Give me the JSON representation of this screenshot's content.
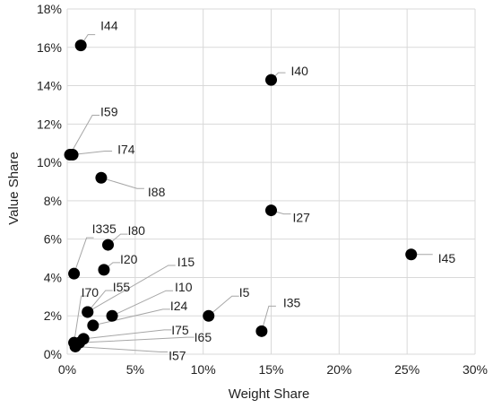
{
  "chart_data": {
    "type": "scatter",
    "xlabel": "Weight Share",
    "ylabel": "Value Share",
    "xlim": [
      0,
      30
    ],
    "ylim": [
      0,
      18
    ],
    "x_ticks": [
      0,
      5,
      10,
      15,
      20,
      25,
      30
    ],
    "y_ticks": [
      0,
      2,
      4,
      6,
      8,
      10,
      12,
      14,
      16,
      18
    ],
    "x_tick_labels": [
      "0%",
      "5%",
      "10%",
      "15%",
      "20%",
      "25%",
      "30%"
    ],
    "y_tick_labels": [
      "0%",
      "2%",
      "4%",
      "6%",
      "8%",
      "10%",
      "12%",
      "14%",
      "16%",
      "18%"
    ],
    "grid": true,
    "marker_color": "#000000",
    "points": [
      {
        "label": "I44",
        "x": 1.0,
        "y": 16.1
      },
      {
        "label": "I40",
        "x": 15.0,
        "y": 14.3
      },
      {
        "label": "I59",
        "x": 0.2,
        "y": 10.4
      },
      {
        "label": "I74",
        "x": 0.4,
        "y": 10.4
      },
      {
        "label": "I88",
        "x": 2.5,
        "y": 9.2
      },
      {
        "label": "I27",
        "x": 15.0,
        "y": 7.5
      },
      {
        "label": "I335",
        "x": 0.5,
        "y": 4.2
      },
      {
        "label": "I80",
        "x": 3.0,
        "y": 5.7
      },
      {
        "label": "I20",
        "x": 2.7,
        "y": 4.4
      },
      {
        "label": "I45",
        "x": 25.3,
        "y": 5.2
      },
      {
        "label": "I15",
        "x": 1.5,
        "y": 2.2
      },
      {
        "label": "I55",
        "x": 1.5,
        "y": 2.2
      },
      {
        "label": "I70",
        "x": 0.5,
        "y": 0.6
      },
      {
        "label": "I10",
        "x": 3.3,
        "y": 2.0
      },
      {
        "label": "I24",
        "x": 1.9,
        "y": 1.5
      },
      {
        "label": "I5",
        "x": 10.4,
        "y": 2.0
      },
      {
        "label": "I35",
        "x": 14.3,
        "y": 1.2
      },
      {
        "label": "I75",
        "x": 1.2,
        "y": 0.8
      },
      {
        "label": "I65",
        "x": 0.9,
        "y": 0.6
      },
      {
        "label": "I57",
        "x": 0.6,
        "y": 0.4
      }
    ]
  }
}
